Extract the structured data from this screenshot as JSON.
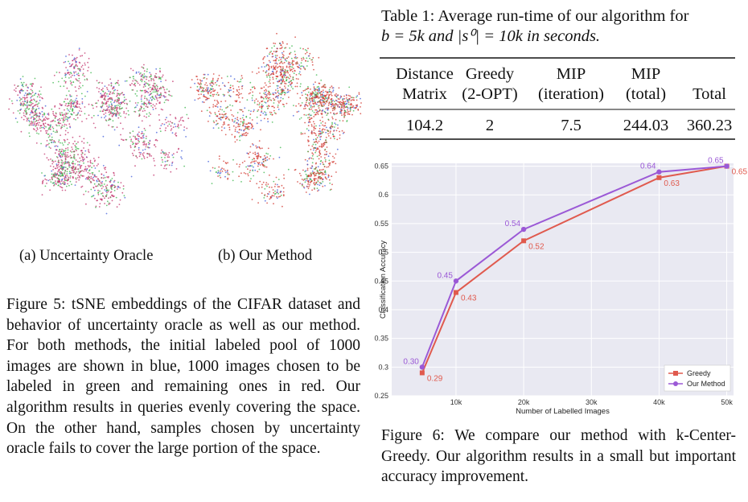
{
  "figure5": {
    "subcaptions": [
      "(a) Uncertainty Oracle",
      "(b) Our Method"
    ],
    "caption": "Figure 5: tSNE embeddings of the CIFAR dataset and behavior of uncertainty oracle as well as our method. For both methods, the initial labeled pool of 1000 images are shown in blue, 1000 images chosen to be labeled in green and remaining ones in red. Our algorithm results in queries evenly covering the space. On the other hand, samples chosen by uncertainty oracle fails to cover the large portion of the space."
  },
  "table": {
    "caption": [
      "Table 1: Average run-time of our algorithm for",
      "b = 5k and |s⁰| = 10k in seconds."
    ],
    "headers": [
      [
        "Distance",
        "Matrix"
      ],
      [
        "Greedy",
        "(2-OPT)"
      ],
      [
        "MIP",
        "(iteration)"
      ],
      [
        "MIP",
        "(total)"
      ],
      [
        "Total"
      ]
    ],
    "rows": [
      [
        "104.2",
        "2",
        "7.5",
        "244.03",
        "360.23"
      ]
    ]
  },
  "chart_data": {
    "type": "line",
    "xlabel": "Number of Labelled Images",
    "ylabel": "Classification Accuracy",
    "series": [
      {
        "name": "Greedy",
        "color": "#e05a4e",
        "marker": "square",
        "x": [
          5000,
          10000,
          20000,
          40000,
          50000
        ],
        "values": [
          0.29,
          0.43,
          0.52,
          0.63,
          0.65
        ],
        "value_labels": [
          "0.29",
          "0.43",
          "0.52",
          "0.63",
          "0.65"
        ]
      },
      {
        "name": "Our Method",
        "color": "#9b59d6",
        "marker": "circle",
        "x": [
          5000,
          10000,
          20000,
          40000,
          50000
        ],
        "values": [
          0.3,
          0.45,
          0.54,
          0.64,
          0.65
        ],
        "value_labels": [
          "0.30",
          "0.45",
          "0.54",
          "0.64",
          "0.65"
        ]
      }
    ],
    "xlim": [
      500,
      51000
    ],
    "ylim": [
      0.25,
      0.655
    ],
    "xticks": [
      {
        "value": 10000,
        "label": "10k"
      },
      {
        "value": 20000,
        "label": "20k"
      },
      {
        "value": 30000,
        "label": "30k"
      },
      {
        "value": 40000,
        "label": "40k"
      },
      {
        "value": 50000,
        "label": "50k"
      }
    ],
    "yticks": [
      0.25,
      0.3,
      0.35,
      0.4,
      0.45,
      0.5,
      0.55,
      0.6,
      0.65
    ],
    "grid": true,
    "legend": "lower-right",
    "background": "#e9e9f2"
  },
  "figure6": {
    "caption": "Figure 6: We compare our method with k-Center-Greedy. Our algorithm results in a small but important accuracy improvement."
  }
}
